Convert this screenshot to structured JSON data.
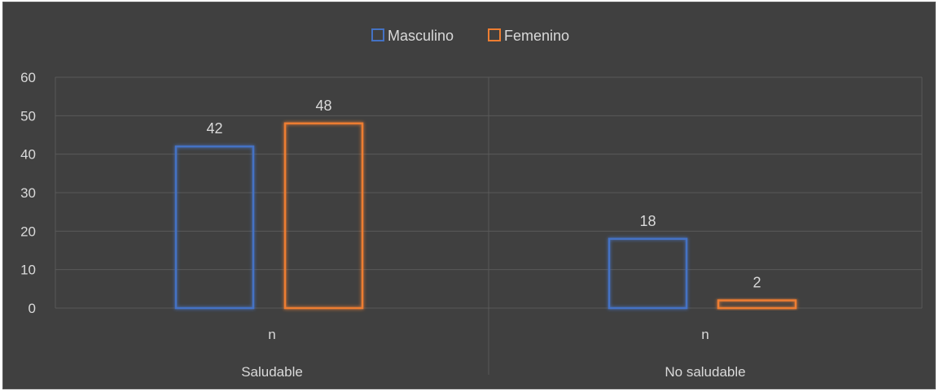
{
  "chart_data": {
    "type": "bar",
    "categories": [
      "Saludable",
      "No saludable"
    ],
    "subcategory_label": "n",
    "series": [
      {
        "name": "Masculino",
        "values": [
          42,
          18
        ],
        "color": "#4472c4"
      },
      {
        "name": "Femenino",
        "values": [
          48,
          2
        ],
        "color": "#ed7d31"
      }
    ],
    "ylim": [
      0,
      60
    ],
    "yticks": [
      0,
      10,
      20,
      30,
      40,
      50,
      60
    ],
    "grid": true,
    "legend_position": "top",
    "background_color": "#404040",
    "text_color": "#d9d9d9"
  }
}
